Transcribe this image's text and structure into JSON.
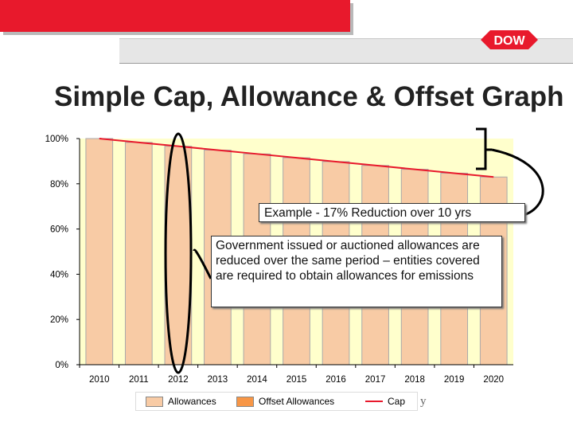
{
  "slide": {
    "title": "Simple Cap, Allowance & Offset Graph",
    "logo_text": "DOW",
    "stray_text": "y",
    "colors": {
      "brand_red": "#e8192c",
      "bar_fill": "#f8cba5",
      "bar_stroke": "#aaaaaa",
      "offset_fill": "#f79646",
      "plot_bg": "#ffffcc",
      "cap_line": "#e8192c"
    }
  },
  "callouts": {
    "reduction": "Example - 17% Reduction over 10 yrs",
    "allowances": "Government issued or auctioned allowances are reduced over the same period – entities covered are required to obtain allowances for emissions"
  },
  "chart_data": {
    "type": "bar",
    "categories": [
      "2010",
      "2011",
      "2012",
      "2013",
      "2014",
      "2015",
      "2016",
      "2017",
      "2018",
      "2019",
      "2020"
    ],
    "y_ticks": [
      "0%",
      "20%",
      "40%",
      "60%",
      "80%",
      "100%"
    ],
    "ylim": [
      0,
      100
    ],
    "grid": false,
    "series": [
      {
        "name": "Allowances",
        "type": "bar",
        "values": [
          100,
          98.3,
          96.6,
          94.9,
          93.2,
          91.5,
          89.8,
          88.1,
          86.4,
          84.7,
          83
        ]
      },
      {
        "name": "Offset Allowances",
        "type": "bar",
        "values": [
          0,
          0,
          0,
          0,
          0,
          0,
          0,
          0,
          0,
          0,
          0
        ]
      },
      {
        "name": "Cap",
        "type": "line",
        "values": [
          100,
          98.3,
          96.6,
          94.9,
          93.2,
          91.5,
          89.8,
          88.1,
          86.4,
          84.7,
          83
        ]
      }
    ],
    "legend": {
      "position": "bottom",
      "entries": [
        "Allowances",
        "Offset Allowances",
        "Cap"
      ]
    },
    "annotations": [
      "Example - 17% Reduction over 10 yrs"
    ]
  }
}
